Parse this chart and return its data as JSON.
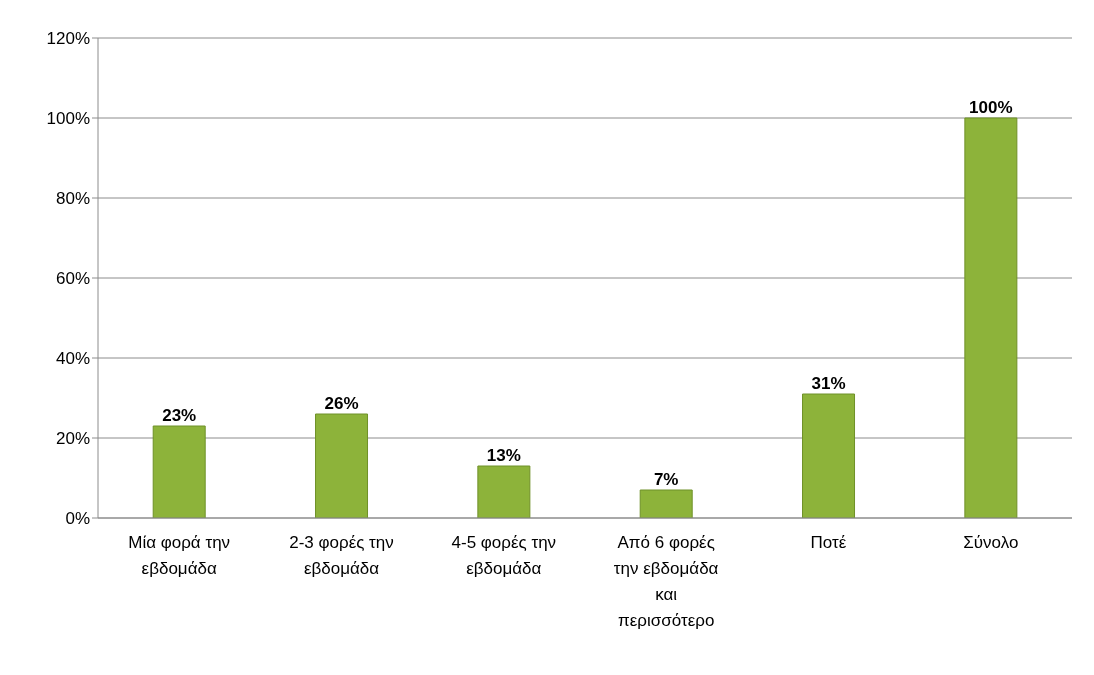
{
  "chart_data": {
    "type": "bar",
    "categories": [
      "Μία φορά την εβδομάδα",
      "2-3 φορές την εβδομάδα",
      "4-5 φορές την εβδομάδα",
      "Από 6 φορές την εβδομάδα και περισσότερο",
      "Ποτέ",
      "Σύνολο"
    ],
    "values": [
      23,
      26,
      13,
      7,
      31,
      100
    ],
    "value_labels": [
      "23%",
      "26%",
      "13%",
      "7%",
      "31%",
      "100%"
    ],
    "color": "#8db33a",
    "ylim": [
      0,
      120
    ],
    "yticks": [
      {
        "value": 0,
        "label": "0%"
      },
      {
        "value": 20,
        "label": "20%"
      },
      {
        "value": 40,
        "label": "40%"
      },
      {
        "value": 60,
        "label": "60%"
      },
      {
        "value": 80,
        "label": "80%"
      },
      {
        "value": 100,
        "label": "100%"
      },
      {
        "value": 120,
        "label": "120%"
      }
    ],
    "grid": "y"
  }
}
